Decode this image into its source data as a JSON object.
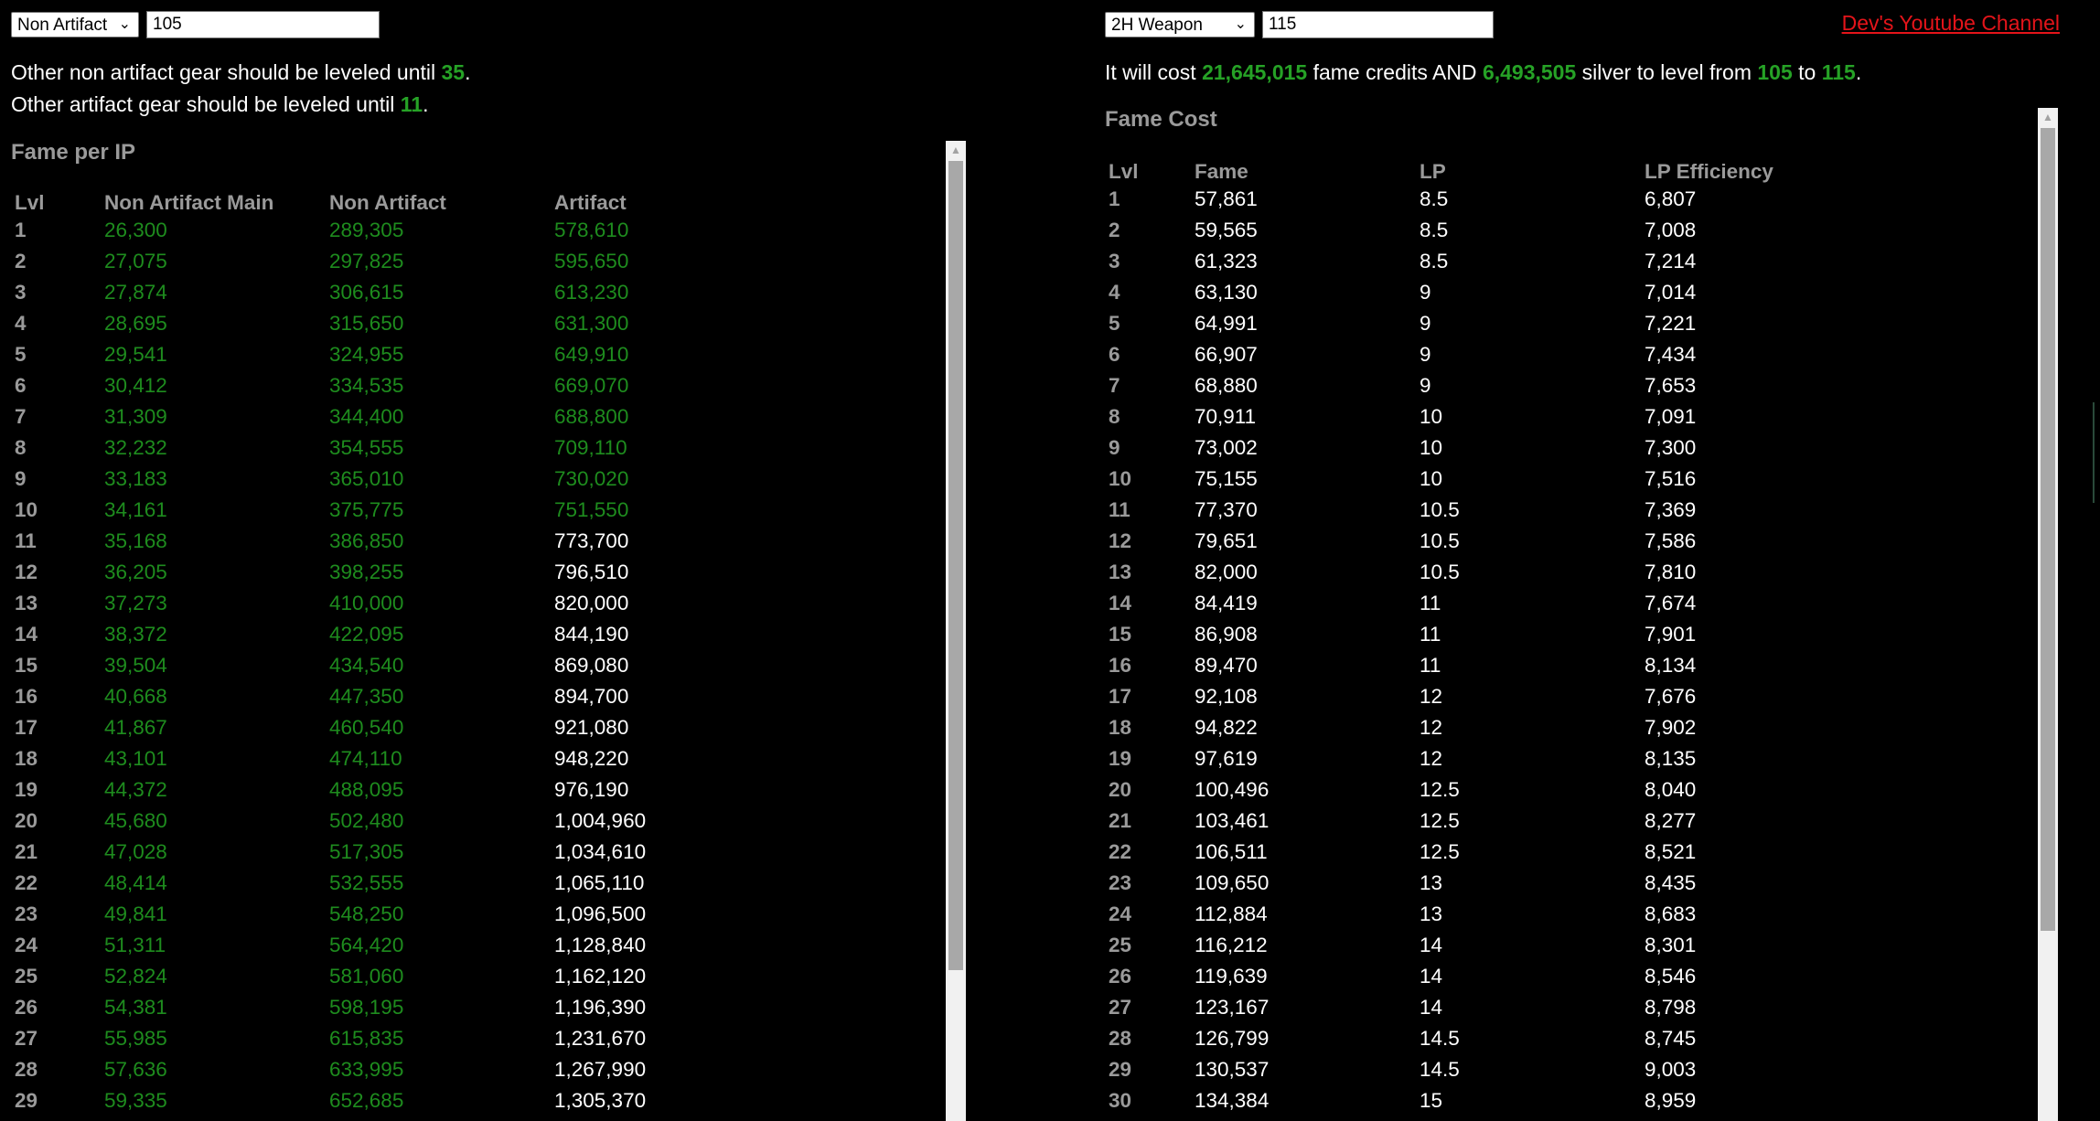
{
  "left": {
    "type_select": "Non Artifact",
    "level_input": "105",
    "line1": {
      "text": "Other non artifact gear should be leveled until ",
      "value": "35",
      "end": "."
    },
    "line2": {
      "text": "Other artifact gear should be leveled until ",
      "value": "11",
      "end": "."
    },
    "heading": "Fame per IP",
    "columns": [
      "Lvl",
      "Non Artifact Main",
      "Non Artifact",
      "Artifact"
    ],
    "rows": [
      [
        "1",
        "26,300",
        "289,305",
        "578,610"
      ],
      [
        "2",
        "27,075",
        "297,825",
        "595,650"
      ],
      [
        "3",
        "27,874",
        "306,615",
        "613,230"
      ],
      [
        "4",
        "28,695",
        "315,650",
        "631,300"
      ],
      [
        "5",
        "29,541",
        "324,955",
        "649,910"
      ],
      [
        "6",
        "30,412",
        "334,535",
        "669,070"
      ],
      [
        "7",
        "31,309",
        "344,400",
        "688,800"
      ],
      [
        "8",
        "32,232",
        "354,555",
        "709,110"
      ],
      [
        "9",
        "33,183",
        "365,010",
        "730,020"
      ],
      [
        "10",
        "34,161",
        "375,775",
        "751,550"
      ],
      [
        "11",
        "35,168",
        "386,850",
        "773,700"
      ],
      [
        "12",
        "36,205",
        "398,255",
        "796,510"
      ],
      [
        "13",
        "37,273",
        "410,000",
        "820,000"
      ],
      [
        "14",
        "38,372",
        "422,095",
        "844,190"
      ],
      [
        "15",
        "39,504",
        "434,540",
        "869,080"
      ],
      [
        "16",
        "40,668",
        "447,350",
        "894,700"
      ],
      [
        "17",
        "41,867",
        "460,540",
        "921,080"
      ],
      [
        "18",
        "43,101",
        "474,110",
        "948,220"
      ],
      [
        "19",
        "44,372",
        "488,095",
        "976,190"
      ],
      [
        "20",
        "45,680",
        "502,480",
        "1,004,960"
      ],
      [
        "21",
        "47,028",
        "517,305",
        "1,034,610"
      ],
      [
        "22",
        "48,414",
        "532,555",
        "1,065,110"
      ],
      [
        "23",
        "49,841",
        "548,250",
        "1,096,500"
      ],
      [
        "24",
        "51,311",
        "564,420",
        "1,128,840"
      ],
      [
        "25",
        "52,824",
        "581,060",
        "1,162,120"
      ],
      [
        "26",
        "54,381",
        "598,195",
        "1,196,390"
      ],
      [
        "27",
        "55,985",
        "615,835",
        "1,231,670"
      ],
      [
        "28",
        "57,636",
        "633,995",
        "1,267,990"
      ],
      [
        "29",
        "59,335",
        "652,685",
        "1,305,370"
      ]
    ],
    "artifact_green_until": 10
  },
  "right": {
    "type_select": "2H Weapon",
    "level_input": "115",
    "youtube_link": "Dev's Youtube Channel",
    "cost_line": {
      "p1": "It will cost ",
      "fame": "21,645,015",
      "p2": " fame credits AND ",
      "silver": "6,493,505",
      "p3": " silver to level from ",
      "from": "105",
      "p4": " to ",
      "to": "115",
      "p5": "."
    },
    "heading": "Fame Cost",
    "columns": [
      "Lvl",
      "Fame",
      "LP",
      "LP Efficiency"
    ],
    "rows": [
      [
        "1",
        "57,861",
        "8.5",
        "6,807"
      ],
      [
        "2",
        "59,565",
        "8.5",
        "7,008"
      ],
      [
        "3",
        "61,323",
        "8.5",
        "7,214"
      ],
      [
        "4",
        "63,130",
        "9",
        "7,014"
      ],
      [
        "5",
        "64,991",
        "9",
        "7,221"
      ],
      [
        "6",
        "66,907",
        "9",
        "7,434"
      ],
      [
        "7",
        "68,880",
        "9",
        "7,653"
      ],
      [
        "8",
        "70,911",
        "10",
        "7,091"
      ],
      [
        "9",
        "73,002",
        "10",
        "7,300"
      ],
      [
        "10",
        "75,155",
        "10",
        "7,516"
      ],
      [
        "11",
        "77,370",
        "10.5",
        "7,369"
      ],
      [
        "12",
        "79,651",
        "10.5",
        "7,586"
      ],
      [
        "13",
        "82,000",
        "10.5",
        "7,810"
      ],
      [
        "14",
        "84,419",
        "11",
        "7,674"
      ],
      [
        "15",
        "86,908",
        "11",
        "7,901"
      ],
      [
        "16",
        "89,470",
        "11",
        "8,134"
      ],
      [
        "17",
        "92,108",
        "12",
        "7,676"
      ],
      [
        "18",
        "94,822",
        "12",
        "7,902"
      ],
      [
        "19",
        "97,619",
        "12",
        "8,135"
      ],
      [
        "20",
        "100,496",
        "12.5",
        "8,040"
      ],
      [
        "21",
        "103,461",
        "12.5",
        "8,277"
      ],
      [
        "22",
        "106,511",
        "12.5",
        "8,521"
      ],
      [
        "23",
        "109,650",
        "13",
        "8,435"
      ],
      [
        "24",
        "112,884",
        "13",
        "8,683"
      ],
      [
        "25",
        "116,212",
        "14",
        "8,301"
      ],
      [
        "26",
        "119,639",
        "14",
        "8,546"
      ],
      [
        "27",
        "123,167",
        "14",
        "8,798"
      ],
      [
        "28",
        "126,799",
        "14.5",
        "8,745"
      ],
      [
        "29",
        "130,537",
        "14.5",
        "9,003"
      ],
      [
        "30",
        "134,384",
        "15",
        "8,959"
      ]
    ]
  },
  "colors": {
    "highlight_green": "#26a226",
    "value_green": "#1e8c1e",
    "link_red": "#e4141a",
    "header_gray": "#9a9a9a"
  }
}
